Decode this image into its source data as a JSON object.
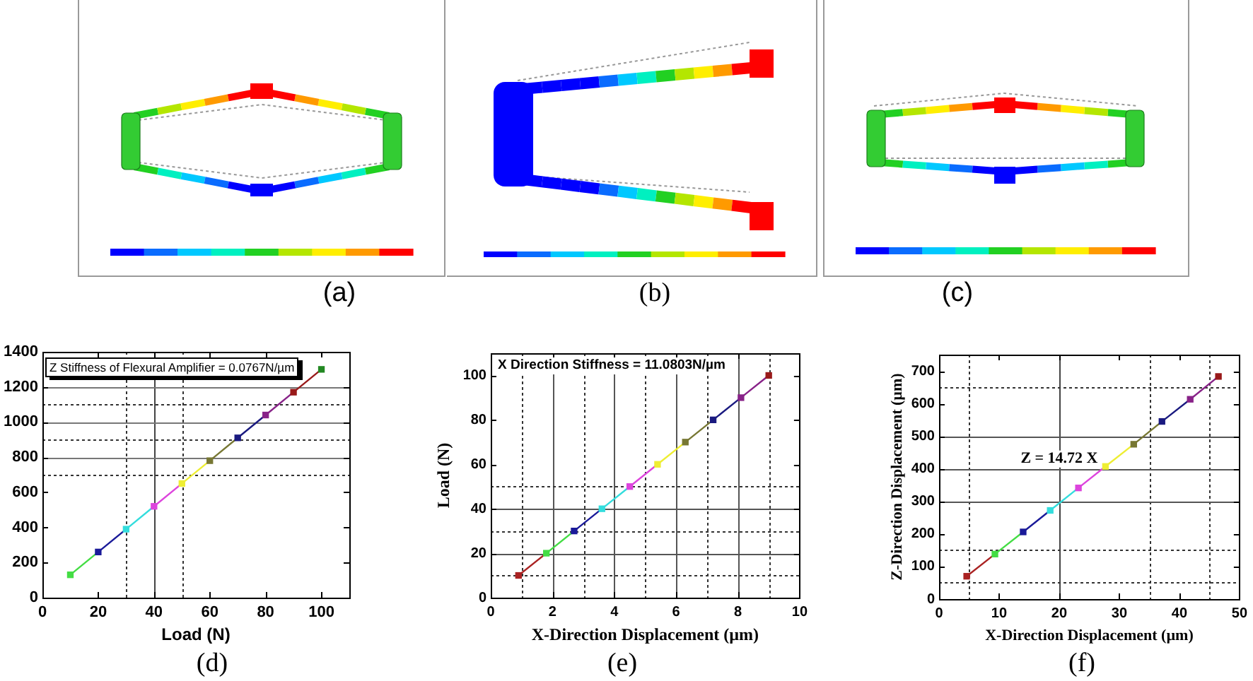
{
  "chart_data": [
    {
      "type": "other",
      "annotations": [
        "(a)"
      ]
    },
    {
      "type": "other",
      "annotations": [
        "(b)"
      ]
    },
    {
      "type": "other",
      "annotations": [
        "(c)"
      ]
    },
    {
      "type": "line",
      "xlabel": "Load (N)",
      "series": [
        {
          "type": "scatter",
          "x": [
            10,
            20,
            30,
            40,
            50,
            60,
            70,
            80,
            90,
            100
          ],
          "values": [
            130,
            260,
            390,
            520,
            650,
            780,
            910,
            1040,
            1170,
            1300
          ],
          "colors": [
            "#44dd44",
            "#1a1a99",
            "#33dddd",
            "#dd44dd",
            "#eeee33",
            "#777733",
            "#1a1a80",
            "#882288",
            "#991a1a",
            "#228822"
          ]
        },
        {
          "marker": "none",
          "x": [
            10,
            20
          ],
          "values": [
            130,
            260
          ],
          "color": "#44dd44"
        },
        {
          "marker": "none",
          "x": [
            20,
            30
          ],
          "values": [
            260,
            390
          ],
          "color": "#1a1a99"
        },
        {
          "marker": "none",
          "x": [
            30,
            40
          ],
          "values": [
            390,
            520
          ],
          "color": "#33dddd"
        },
        {
          "marker": "none",
          "x": [
            40,
            50
          ],
          "values": [
            520,
            650
          ],
          "color": "#dd44dd"
        },
        {
          "marker": "none",
          "x": [
            50,
            60
          ],
          "values": [
            650,
            780
          ],
          "color": "#eeee33"
        },
        {
          "marker": "none",
          "x": [
            60,
            70
          ],
          "values": [
            780,
            910
          ],
          "color": "#777733"
        },
        {
          "marker": "none",
          "x": [
            70,
            80
          ],
          "values": [
            910,
            1040
          ],
          "color": "#1a1a80"
        },
        {
          "marker": "none",
          "x": [
            80,
            90
          ],
          "values": [
            1040,
            1170
          ],
          "color": "#882288"
        },
        {
          "marker": "none",
          "x": [
            90,
            100
          ],
          "values": [
            1170,
            1300
          ],
          "color": "#991a1a"
        }
      ],
      "xlim": [
        0,
        110
      ],
      "ylim": [
        0,
        1400
      ],
      "xticks": [
        0,
        20,
        40,
        60,
        80,
        100
      ],
      "yticks": [
        0,
        200,
        400,
        600,
        800,
        1000,
        1200,
        1400
      ],
      "marker": "square",
      "ref_lines": [
        {
          "axis": "x",
          "value": 30,
          "line_style": "dotted",
          "color": "#333333"
        },
        {
          "axis": "x",
          "value": 40,
          "line_style": "solid",
          "color": "#444444"
        },
        {
          "axis": "x",
          "value": 50,
          "line_style": "dotted",
          "color": "#333333"
        },
        {
          "axis": "y",
          "value": 700,
          "line_style": "dotted",
          "color": "#333333"
        },
        {
          "axis": "y",
          "value": 800,
          "line_style": "solid",
          "color": "#777777"
        },
        {
          "axis": "y",
          "value": 900,
          "line_style": "dotted",
          "color": "#333333"
        },
        {
          "axis": "y",
          "value": 1000,
          "line_style": "solid",
          "color": "#777777"
        },
        {
          "axis": "y",
          "value": 1100,
          "line_style": "dotted",
          "color": "#333333"
        },
        {
          "axis": "y",
          "value": 1200,
          "line_style": "solid",
          "color": "#777777"
        }
      ],
      "annotations": [
        "Z Stiffness of Flexural Amplifier = 0.0767N/µm",
        "(d)"
      ]
    },
    {
      "type": "line",
      "xlabel": "X-Direction Displacement (µm)",
      "ylabel": "Load (N)",
      "series": [
        {
          "type": "scatter",
          "x": [
            0.9,
            1.8,
            2.7,
            3.6,
            4.5,
            5.4,
            6.3,
            7.2,
            8.1,
            9.0
          ],
          "values": [
            10,
            20,
            30,
            40,
            50,
            60,
            70,
            80,
            90,
            100
          ],
          "colors": [
            "#aa2222",
            "#44dd44",
            "#1a1a99",
            "#33dddd",
            "#dd44dd",
            "#eeee33",
            "#777733",
            "#1a1a80",
            "#882288",
            "#991a1a"
          ]
        },
        {
          "marker": "none",
          "x": [
            0.9,
            1.8
          ],
          "values": [
            10,
            20
          ],
          "color": "#aa2222"
        },
        {
          "marker": "none",
          "x": [
            1.8,
            2.7
          ],
          "values": [
            20,
            30
          ],
          "color": "#44dd44"
        },
        {
          "marker": "none",
          "x": [
            2.7,
            3.6
          ],
          "values": [
            30,
            40
          ],
          "color": "#1a1a99"
        },
        {
          "marker": "none",
          "x": [
            3.6,
            4.5
          ],
          "values": [
            40,
            50
          ],
          "color": "#33dddd"
        },
        {
          "marker": "none",
          "x": [
            4.5,
            5.4
          ],
          "values": [
            50,
            60
          ],
          "color": "#dd44dd"
        },
        {
          "marker": "none",
          "x": [
            5.4,
            6.3
          ],
          "values": [
            60,
            70
          ],
          "color": "#eeee33"
        },
        {
          "marker": "none",
          "x": [
            6.3,
            7.2
          ],
          "values": [
            70,
            80
          ],
          "color": "#777733"
        },
        {
          "marker": "none",
          "x": [
            7.2,
            8.1
          ],
          "values": [
            80,
            90
          ],
          "color": "#1a1a80"
        },
        {
          "marker": "none",
          "x": [
            8.1,
            9.0
          ],
          "values": [
            90,
            100
          ],
          "color": "#882288"
        }
      ],
      "xlim": [
        0,
        10
      ],
      "ylim": [
        0,
        110
      ],
      "xticks": [
        0,
        2,
        4,
        6,
        8,
        10
      ],
      "yticks": [
        0,
        20,
        40,
        60,
        80,
        100
      ],
      "marker": "square",
      "ref_lines": [
        {
          "axis": "x",
          "value": 1,
          "line_style": "dotted",
          "color": "#333333"
        },
        {
          "axis": "x",
          "value": 2,
          "line_style": "solid",
          "color": "#555555"
        },
        {
          "axis": "x",
          "value": 3,
          "line_style": "dotted",
          "color": "#333333"
        },
        {
          "axis": "x",
          "value": 4,
          "line_style": "solid",
          "color": "#555555"
        },
        {
          "axis": "x",
          "value": 5,
          "line_style": "dotted",
          "color": "#333333"
        },
        {
          "axis": "x",
          "value": 6,
          "line_style": "solid",
          "color": "#555555"
        },
        {
          "axis": "x",
          "value": 7,
          "line_style": "dotted",
          "color": "#333333"
        },
        {
          "axis": "x",
          "value": 8,
          "line_style": "solid",
          "color": "#555555"
        },
        {
          "axis": "x",
          "value": 9,
          "line_style": "dotted",
          "color": "#333333"
        },
        {
          "axis": "y",
          "value": 10,
          "line_style": "dotted",
          "color": "#333333"
        },
        {
          "axis": "y",
          "value": 20,
          "line_style": "solid",
          "color": "#555555"
        },
        {
          "axis": "y",
          "value": 30,
          "line_style": "dotted",
          "color": "#333333"
        },
        {
          "axis": "y",
          "value": 40,
          "line_style": "solid",
          "color": "#555555"
        },
        {
          "axis": "y",
          "value": 50,
          "line_style": "dotted",
          "color": "#333333"
        }
      ],
      "annotations": [
        "X Direction Stiffness = 11.0803N/µm",
        "(e)"
      ]
    },
    {
      "type": "line",
      "xlabel": "X-Direction Displacement (µm)",
      "ylabel": "Z-Direction Displacement (µm)",
      "series": [
        {
          "type": "scatter",
          "x": [
            4.6,
            9.3,
            14,
            18.5,
            23.2,
            27.7,
            32.4,
            37.1,
            41.8,
            46.5
          ],
          "values": [
            70,
            138,
            206,
            272,
            341,
            407,
            475,
            545,
            613,
            683
          ],
          "colors": [
            "#aa2222",
            "#44dd44",
            "#1a1a99",
            "#33dddd",
            "#dd44dd",
            "#eeee33",
            "#777733",
            "#1a1a80",
            "#882288",
            "#991a1a"
          ]
        },
        {
          "marker": "none",
          "x": [
            4.6,
            9.3
          ],
          "values": [
            70,
            138
          ],
          "color": "#aa2222"
        },
        {
          "marker": "none",
          "x": [
            9.3,
            14
          ],
          "values": [
            138,
            206
          ],
          "color": "#44dd44"
        },
        {
          "marker": "none",
          "x": [
            14,
            18.5
          ],
          "values": [
            206,
            272
          ],
          "color": "#1a1a99"
        },
        {
          "marker": "none",
          "x": [
            18.5,
            23.2
          ],
          "values": [
            272,
            341
          ],
          "color": "#33dddd"
        },
        {
          "marker": "none",
          "x": [
            23.2,
            27.7
          ],
          "values": [
            341,
            407
          ],
          "color": "#dd44dd"
        },
        {
          "marker": "none",
          "x": [
            27.7,
            32.4
          ],
          "values": [
            407,
            475
          ],
          "color": "#eeee33"
        },
        {
          "marker": "none",
          "x": [
            32.4,
            37.1
          ],
          "values": [
            475,
            545
          ],
          "color": "#777733"
        },
        {
          "marker": "none",
          "x": [
            37.1,
            41.8
          ],
          "values": [
            545,
            613
          ],
          "color": "#1a1a80"
        },
        {
          "marker": "none",
          "x": [
            41.8,
            46.5
          ],
          "values": [
            613,
            683
          ],
          "color": "#882288"
        }
      ],
      "xlim": [
        0,
        50
      ],
      "ylim": [
        0,
        750
      ],
      "xticks": [
        0,
        10,
        20,
        30,
        40,
        50
      ],
      "yticks": [
        0,
        100,
        200,
        300,
        400,
        500,
        600,
        700
      ],
      "marker": "square",
      "ref_lines": [
        {
          "axis": "x",
          "value": 5,
          "line_style": "dotted",
          "color": "#333333"
        },
        {
          "axis": "x",
          "value": 20,
          "line_style": "solid",
          "color": "#444444"
        },
        {
          "axis": "x",
          "value": 35,
          "line_style": "dotted",
          "color": "#333333"
        },
        {
          "axis": "x",
          "value": 45,
          "line_style": "dotted",
          "color": "#333333"
        },
        {
          "axis": "y",
          "value": 50,
          "line_style": "dotted",
          "color": "#333333"
        },
        {
          "axis": "y",
          "value": 150,
          "line_style": "dotted",
          "color": "#333333"
        },
        {
          "axis": "y",
          "value": 300,
          "line_style": "solid",
          "color": "#555555"
        },
        {
          "axis": "y",
          "value": 400,
          "line_style": "solid",
          "color": "#555555"
        },
        {
          "axis": "y",
          "value": 500,
          "line_style": "solid",
          "color": "#555555"
        },
        {
          "axis": "y",
          "value": 650,
          "line_style": "dotted",
          "color": "#333333"
        }
      ],
      "annotations": [
        {
          "text": "Z = 14.72 X",
          "x": 20,
          "y": 430
        },
        "(f)"
      ]
    }
  ]
}
